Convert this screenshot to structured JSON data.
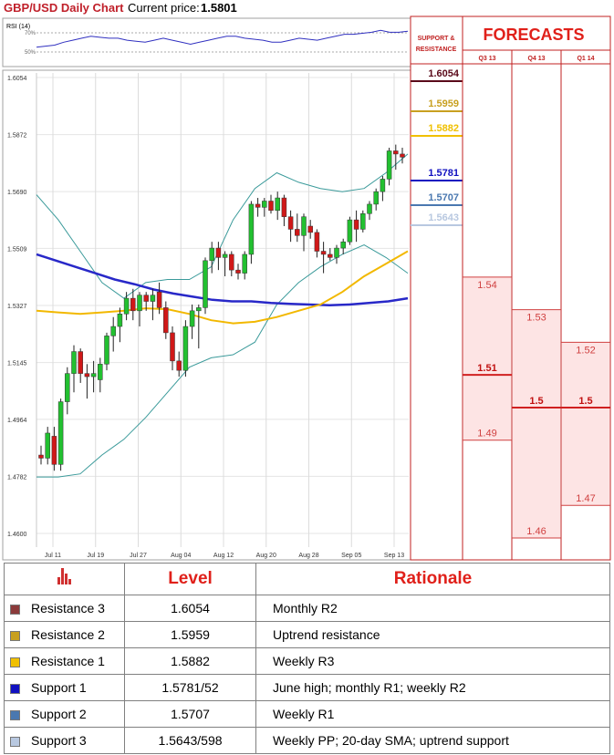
{
  "header": {
    "title": "GBP/USD Daily Chart",
    "price_label": "Current price:",
    "price_value": "1.5801"
  },
  "rsi": {
    "label": "RSI (14)",
    "tick_upper": "70%",
    "tick_lower": "50%"
  },
  "sr_panel": {
    "title_line1": "SUPPORT &",
    "title_line2": "RESISTANCE"
  },
  "forecast_panel": {
    "title": "FORECASTS"
  },
  "table": {
    "col_level": "Level",
    "col_rationale": "Rationale",
    "rows": [
      {
        "name": "Resistance 3",
        "level": "1.6054",
        "rationale": "Monthly R2",
        "color": "#8b3a3a"
      },
      {
        "name": "Resistance 2",
        "level": "1.5959",
        "rationale": "Uptrend resistance",
        "color": "#c8a020"
      },
      {
        "name": "Resistance 1",
        "level": "1.5882",
        "rationale": "Weekly R3",
        "color": "#f0c000"
      },
      {
        "name": "Support 1",
        "level": "1.5781/52",
        "rationale": "June high; monthly R1; weekly R2",
        "color": "#1010c0"
      },
      {
        "name": "Support 2",
        "level": "1.5707",
        "rationale": "Weekly R1",
        "color": "#4a78b0"
      },
      {
        "name": "Support 3",
        "level": "1.5643/598",
        "rationale": "Weekly PP; 20-day SMA; uptrend support",
        "color": "#b8c8e0"
      }
    ]
  },
  "chart_data": {
    "type": "candlestick",
    "y_ticks": [
      "1.4600",
      "1.4782",
      "1.4964",
      "1.5145",
      "1.5327",
      "1.5509",
      "1.5690",
      "1.5872",
      "1.6054"
    ],
    "ylim": [
      1.46,
      1.6054
    ],
    "x_ticks": [
      "Jul 11",
      "Jul 19",
      "Jul 27",
      "Aug 04",
      "Aug 12",
      "Aug 20",
      "Aug 28",
      "Sep 05",
      "Sep 13"
    ],
    "grid": true,
    "ohlc": [
      [
        1.485,
        1.488,
        1.482,
        1.484
      ],
      [
        1.484,
        1.494,
        1.482,
        1.492
      ],
      [
        1.491,
        1.494,
        1.48,
        1.482
      ],
      [
        1.482,
        1.503,
        1.48,
        1.502
      ],
      [
        1.502,
        1.513,
        1.498,
        1.511
      ],
      [
        1.511,
        1.52,
        1.505,
        1.518
      ],
      [
        1.518,
        1.519,
        1.508,
        1.511
      ],
      [
        1.511,
        1.514,
        1.503,
        1.51
      ],
      [
        1.51,
        1.515,
        1.505,
        1.511
      ],
      [
        1.509,
        1.516,
        1.505,
        1.514
      ],
      [
        1.514,
        1.524,
        1.512,
        1.523
      ],
      [
        1.523,
        1.529,
        1.518,
        1.526
      ],
      [
        1.526,
        1.532,
        1.521,
        1.53
      ],
      [
        1.53,
        1.537,
        1.528,
        1.535
      ],
      [
        1.535,
        1.538,
        1.528,
        1.531
      ],
      [
        1.531,
        1.537,
        1.526,
        1.536
      ],
      [
        1.536,
        1.537,
        1.531,
        1.534
      ],
      [
        1.534,
        1.538,
        1.528,
        1.536
      ],
      [
        1.537,
        1.54,
        1.53,
        1.532
      ],
      [
        1.532,
        1.534,
        1.522,
        1.524
      ],
      [
        1.524,
        1.526,
        1.512,
        1.515
      ],
      [
        1.515,
        1.518,
        1.51,
        1.512
      ],
      [
        1.512,
        1.528,
        1.51,
        1.526
      ],
      [
        1.526,
        1.533,
        1.522,
        1.531
      ],
      [
        1.531,
        1.533,
        1.519,
        1.532
      ],
      [
        1.532,
        1.548,
        1.53,
        1.547
      ],
      [
        1.547,
        1.553,
        1.543,
        1.551
      ],
      [
        1.551,
        1.553,
        1.544,
        1.548
      ],
      [
        1.548,
        1.55,
        1.542,
        1.549
      ],
      [
        1.549,
        1.55,
        1.542,
        1.544
      ],
      [
        1.544,
        1.546,
        1.541,
        1.543
      ],
      [
        1.543,
        1.55,
        1.541,
        1.549
      ],
      [
        1.549,
        1.566,
        1.546,
        1.565
      ],
      [
        1.565,
        1.567,
        1.561,
        1.564
      ],
      [
        1.564,
        1.567,
        1.561,
        1.566
      ],
      [
        1.566,
        1.568,
        1.562,
        1.563
      ],
      [
        1.563,
        1.569,
        1.56,
        1.567
      ],
      [
        1.567,
        1.568,
        1.558,
        1.561
      ],
      [
        1.561,
        1.563,
        1.553,
        1.557
      ],
      [
        1.557,
        1.562,
        1.553,
        1.555
      ],
      [
        1.555,
        1.562,
        1.55,
        1.561
      ],
      [
        1.558,
        1.56,
        1.554,
        1.556
      ],
      [
        1.556,
        1.557,
        1.548,
        1.55
      ],
      [
        1.55,
        1.553,
        1.543,
        1.549
      ],
      [
        1.549,
        1.551,
        1.547,
        1.548
      ],
      [
        1.548,
        1.552,
        1.546,
        1.551
      ],
      [
        1.551,
        1.554,
        1.549,
        1.553
      ],
      [
        1.553,
        1.561,
        1.552,
        1.56
      ],
      [
        1.56,
        1.563,
        1.553,
        1.557
      ],
      [
        1.557,
        1.563,
        1.556,
        1.562
      ],
      [
        1.562,
        1.566,
        1.56,
        1.565
      ],
      [
        1.565,
        1.57,
        1.563,
        1.569
      ],
      [
        1.569,
        1.574,
        1.566,
        1.573
      ],
      [
        1.573,
        1.583,
        1.571,
        1.582
      ],
      [
        1.582,
        1.584,
        1.576,
        1.581
      ],
      [
        1.581,
        1.583,
        1.578,
        1.58
      ]
    ],
    "sma_200": [
      1.549,
      1.547,
      1.545,
      1.543,
      1.541,
      1.5395,
      1.5378,
      1.5365,
      1.5355,
      1.5345,
      1.534,
      1.534,
      1.5335,
      1.5332,
      1.533,
      1.5328,
      1.533,
      1.5335,
      1.534,
      1.535
    ],
    "sma_50": [
      1.531,
      1.5305,
      1.53,
      1.5305,
      1.531,
      1.5318,
      1.5315,
      1.53,
      1.528,
      1.527,
      1.5275,
      1.529,
      1.531,
      1.533,
      1.537,
      1.542,
      1.546,
      1.55
    ],
    "bb_upper": [
      1.568,
      1.56,
      1.55,
      1.54,
      1.535,
      1.54,
      1.541,
      1.541,
      1.545,
      1.56,
      1.57,
      1.575,
      1.572,
      1.57,
      1.569,
      1.57,
      1.575,
      1.581
    ],
    "bb_lower": [
      1.478,
      1.478,
      1.479,
      1.485,
      1.49,
      1.497,
      1.505,
      1.513,
      1.516,
      1.517,
      1.521,
      1.533,
      1.54,
      1.545,
      1.549,
      1.552,
      1.548,
      1.543
    ],
    "support_resistance": [
      {
        "label": "1.6054",
        "value": 1.6054,
        "color": "#5a0a1a"
      },
      {
        "label": "1.5959",
        "value": 1.5959,
        "color": "#c8a020"
      },
      {
        "label": "1.5882",
        "value": 1.5882,
        "color": "#f0c000"
      },
      {
        "label": "1.5781",
        "value": 1.5781,
        "color": "#1010c0"
      },
      {
        "label": "1.5707",
        "value": 1.5707,
        "color": "#4a78b0"
      },
      {
        "label": "1.5643",
        "value": 1.5643,
        "color": "#b8c8e0"
      }
    ],
    "forecasts": [
      {
        "period": "Q3 13",
        "high": "1.54",
        "mid": "1.51",
        "low": "1.49"
      },
      {
        "period": "Q4 13",
        "high": "1.53",
        "mid": "1.5",
        "low": "1.46"
      },
      {
        "period": "Q1 14",
        "high": "1.52",
        "mid": "1.5",
        "low": "1.47"
      }
    ],
    "rsi_values": [
      55,
      56,
      57,
      60,
      62,
      64,
      66,
      65,
      64,
      64,
      62,
      61,
      60,
      62,
      64,
      62,
      60,
      58,
      60,
      62,
      64,
      66,
      66,
      64,
      63,
      62,
      60,
      60,
      62,
      64,
      63,
      62,
      64,
      66,
      68,
      68,
      69,
      70,
      72,
      70,
      70,
      71
    ]
  }
}
